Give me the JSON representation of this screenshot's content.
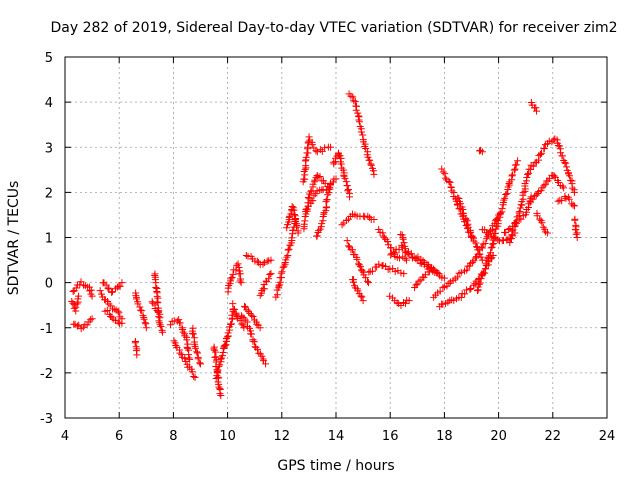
{
  "chart_data": {
    "type": "scatter",
    "title": "Day 282 of 2019, Sidereal Day-to-day VTEC variation (SDTVAR) for receiver zim2",
    "xlabel": "GPS time / hours",
    "ylabel": "SDTVAR / TECUs",
    "xlim": [
      4,
      24
    ],
    "ylim": [
      -3,
      5
    ],
    "xticks": [
      "4",
      "6",
      "8",
      "10",
      "12",
      "14",
      "16",
      "18",
      "20",
      "22",
      "24"
    ],
    "yticks": [
      "-3",
      "-2",
      "-1",
      "0",
      "1",
      "2",
      "3",
      "4",
      "5"
    ],
    "grid": true,
    "marker": "+",
    "color": "#ff0000",
    "series": [
      {
        "name": "tracks",
        "segments": [
          [
            [
              4.3,
              -0.2
            ],
            [
              4.6,
              0.0
            ],
            [
              4.9,
              -0.1
            ],
            [
              5.0,
              -0.3
            ]
          ],
          [
            [
              4.3,
              -0.9
            ],
            [
              4.6,
              -1.0
            ],
            [
              4.9,
              -0.9
            ],
            [
              5.0,
              -0.8
            ]
          ],
          [
            [
              4.25,
              -0.4
            ],
            [
              4.4,
              -0.6
            ],
            [
              4.5,
              -0.3
            ]
          ],
          [
            [
              5.3,
              -0.2
            ],
            [
              5.6,
              -0.5
            ],
            [
              5.9,
              -0.6
            ],
            [
              6.1,
              -0.8
            ]
          ],
          [
            [
              5.4,
              0.0
            ],
            [
              5.7,
              -0.2
            ],
            [
              6.0,
              -0.1
            ],
            [
              6.1,
              0.0
            ]
          ],
          [
            [
              5.5,
              -0.6
            ],
            [
              5.8,
              -0.8
            ],
            [
              6.1,
              -0.9
            ]
          ],
          [
            [
              6.6,
              -0.2
            ],
            [
              6.7,
              -0.5
            ],
            [
              6.9,
              -0.7
            ],
            [
              7.0,
              -1.0
            ]
          ],
          [
            [
              6.6,
              -1.3
            ],
            [
              6.65,
              -1.6
            ]
          ],
          [
            [
              7.3,
              0.2
            ],
            [
              7.4,
              -0.3
            ],
            [
              7.5,
              -0.9
            ],
            [
              7.6,
              -1.1
            ]
          ],
          [
            [
              7.2,
              -0.4
            ],
            [
              7.4,
              -0.6
            ],
            [
              7.5,
              -0.7
            ]
          ],
          [
            [
              7.9,
              -0.9
            ],
            [
              8.2,
              -0.8
            ],
            [
              8.5,
              -1.3
            ],
            [
              8.6,
              -1.7
            ]
          ],
          [
            [
              8.0,
              -1.3
            ],
            [
              8.3,
              -1.6
            ],
            [
              8.6,
              -1.9
            ],
            [
              8.8,
              -2.1
            ]
          ],
          [
            [
              8.7,
              -1.0
            ],
            [
              8.8,
              -1.4
            ],
            [
              9.0,
              -1.8
            ]
          ],
          [
            [
              9.5,
              -1.4
            ],
            [
              9.6,
              -1.9
            ],
            [
              9.7,
              -2.3
            ],
            [
              9.75,
              -2.5
            ]
          ],
          [
            [
              9.6,
              -2.1
            ],
            [
              9.8,
              -1.6
            ],
            [
              10.0,
              -1.2
            ]
          ],
          [
            [
              9.9,
              -1.4
            ],
            [
              10.1,
              -1.0
            ],
            [
              10.2,
              -0.6
            ]
          ],
          [
            [
              10.0,
              -0.2
            ],
            [
              10.2,
              0.2
            ],
            [
              10.4,
              0.4
            ],
            [
              10.5,
              0.0
            ]
          ],
          [
            [
              10.2,
              -0.5
            ],
            [
              10.4,
              -0.8
            ],
            [
              10.6,
              -1.0
            ]
          ],
          [
            [
              10.5,
              -0.7
            ],
            [
              10.8,
              -1.0
            ],
            [
              11.0,
              -1.4
            ],
            [
              11.2,
              -1.6
            ],
            [
              11.4,
              -1.8
            ]
          ],
          [
            [
              10.6,
              -0.5
            ],
            [
              10.9,
              -0.7
            ],
            [
              11.2,
              -1.0
            ]
          ],
          [
            [
              10.7,
              0.6
            ],
            [
              11.0,
              0.5
            ],
            [
              11.3,
              0.4
            ],
            [
              11.6,
              0.5
            ]
          ],
          [
            [
              11.2,
              -0.3
            ],
            [
              11.4,
              0.0
            ],
            [
              11.6,
              0.2
            ]
          ],
          [
            [
              11.8,
              -0.3
            ],
            [
              12.0,
              0.2
            ],
            [
              12.3,
              0.8
            ],
            [
              12.5,
              1.4
            ]
          ],
          [
            [
              12.2,
              1.2
            ],
            [
              12.4,
              1.7
            ],
            [
              12.6,
              1.1
            ]
          ],
          [
            [
              12.8,
              1.2
            ],
            [
              13.0,
              1.9
            ],
            [
              13.3,
              2.4
            ],
            [
              13.6,
              2.2
            ]
          ],
          [
            [
              12.8,
              2.2
            ],
            [
              13.0,
              3.2
            ],
            [
              13.3,
              2.9
            ],
            [
              13.8,
              3.0
            ]
          ],
          [
            [
              12.9,
              1.6
            ],
            [
              13.3,
              2.0
            ],
            [
              13.7,
              2.1
            ],
            [
              14.0,
              2.3
            ]
          ],
          [
            [
              13.3,
              1.0
            ],
            [
              13.6,
              1.6
            ],
            [
              13.8,
              2.2
            ]
          ],
          [
            [
              13.9,
              2.6
            ],
            [
              14.1,
              2.9
            ],
            [
              14.3,
              2.4
            ],
            [
              14.5,
              1.9
            ]
          ],
          [
            [
              14.5,
              4.2
            ],
            [
              14.7,
              4.0
            ],
            [
              15.0,
              3.2
            ],
            [
              15.2,
              2.8
            ],
            [
              15.4,
              2.4
            ]
          ],
          [
            [
              14.2,
              1.3
            ],
            [
              14.6,
              1.5
            ],
            [
              15.0,
              1.5
            ],
            [
              15.4,
              1.4
            ]
          ],
          [
            [
              14.4,
              0.9
            ],
            [
              14.7,
              0.6
            ],
            [
              15.0,
              0.2
            ],
            [
              15.2,
              0.0
            ]
          ],
          [
            [
              14.6,
              0.1
            ],
            [
              14.8,
              -0.2
            ],
            [
              15.0,
              -0.4
            ]
          ],
          [
            [
              15.2,
              0.2
            ],
            [
              15.6,
              0.4
            ],
            [
              16.0,
              0.3
            ],
            [
              16.5,
              0.2
            ]
          ],
          [
            [
              15.6,
              1.2
            ],
            [
              15.9,
              0.9
            ],
            [
              16.2,
              0.6
            ],
            [
              16.6,
              0.5
            ]
          ],
          [
            [
              16.0,
              0.6
            ],
            [
              16.4,
              0.8
            ],
            [
              16.8,
              0.6
            ],
            [
              17.2,
              0.5
            ],
            [
              17.6,
              0.3
            ]
          ],
          [
            [
              16.4,
              1.1
            ],
            [
              16.6,
              0.7
            ],
            [
              17.0,
              0.5
            ],
            [
              17.5,
              0.3
            ],
            [
              18.0,
              0.1
            ]
          ],
          [
            [
              16.0,
              -0.3
            ],
            [
              16.4,
              -0.5
            ],
            [
              16.7,
              -0.4
            ]
          ],
          [
            [
              16.9,
              -0.1
            ],
            [
              17.2,
              0.1
            ],
            [
              17.5,
              0.3
            ],
            [
              17.8,
              0.2
            ]
          ],
          [
            [
              17.6,
              -0.3
            ],
            [
              18.0,
              -0.1
            ],
            [
              18.4,
              0.1
            ],
            [
              18.8,
              0.3
            ],
            [
              19.2,
              0.6
            ],
            [
              19.6,
              1.0
            ],
            [
              20.0,
              1.5
            ]
          ],
          [
            [
              17.8,
              -0.5
            ],
            [
              18.2,
              -0.4
            ],
            [
              18.6,
              -0.3
            ],
            [
              19.0,
              -0.1
            ],
            [
              19.4,
              0.2
            ],
            [
              19.8,
              0.6
            ]
          ],
          [
            [
              17.9,
              2.5
            ],
            [
              18.2,
              2.2
            ],
            [
              18.5,
              1.7
            ],
            [
              18.8,
              1.3
            ],
            [
              19.0,
              1.0
            ]
          ],
          [
            [
              18.5,
              1.9
            ],
            [
              18.8,
              1.4
            ],
            [
              19.1,
              0.9
            ],
            [
              19.4,
              0.5
            ]
          ],
          [
            [
              19.3,
              2.9
            ],
            [
              19.4,
              2.9
            ]
          ],
          [
            [
              19.2,
              -0.2
            ],
            [
              19.5,
              0.3
            ],
            [
              19.8,
              0.9
            ],
            [
              20.1,
              1.6
            ],
            [
              20.4,
              2.2
            ],
            [
              20.7,
              2.7
            ]
          ],
          [
            [
              19.4,
              1.2
            ],
            [
              19.8,
              1.0
            ],
            [
              20.2,
              0.9
            ],
            [
              20.6,
              1.1
            ]
          ],
          [
            [
              20.2,
              1.1
            ],
            [
              20.6,
              1.3
            ],
            [
              21.0,
              1.5
            ],
            [
              21.2,
              1.9
            ]
          ],
          [
            [
              20.4,
              0.9
            ],
            [
              20.8,
              1.6
            ],
            [
              21.0,
              2.2
            ],
            [
              21.2,
              2.6
            ]
          ],
          [
            [
              21.2,
              4.0
            ],
            [
              21.3,
              3.9
            ],
            [
              21.4,
              3.8
            ]
          ],
          [
            [
              21.3,
              2.6
            ],
            [
              21.6,
              2.9
            ],
            [
              21.8,
              3.1
            ],
            [
              22.1,
              3.2
            ],
            [
              22.3,
              2.9
            ],
            [
              22.6,
              2.4
            ],
            [
              22.8,
              2.0
            ]
          ],
          [
            [
              21.2,
              1.8
            ],
            [
              21.6,
              2.1
            ],
            [
              22.0,
              2.4
            ],
            [
              22.4,
              2.1
            ]
          ],
          [
            [
              21.4,
              1.5
            ],
            [
              21.6,
              1.3
            ],
            [
              21.8,
              1.1
            ]
          ],
          [
            [
              22.2,
              1.8
            ],
            [
              22.5,
              1.9
            ],
            [
              22.8,
              1.7
            ]
          ],
          [
            [
              22.8,
              1.4
            ],
            [
              22.85,
              1.2
            ],
            [
              22.9,
              1.0
            ]
          ]
        ]
      }
    ]
  }
}
